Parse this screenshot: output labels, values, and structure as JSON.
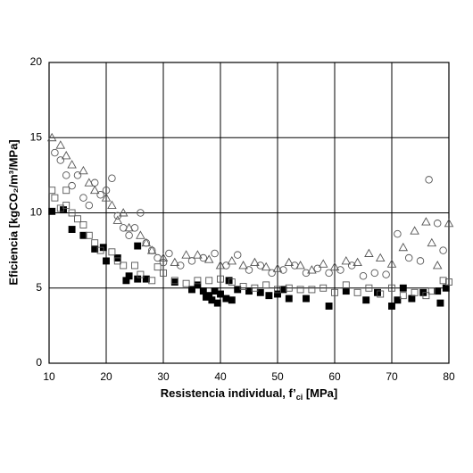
{
  "chart_data": {
    "type": "scatter",
    "xlabel": [
      "Resistencia individual, f’",
      "ci",
      " [MPa]"
    ],
    "ylabel": "Eficiencia [kgCO₂/m³/MPa]",
    "xlim": [
      10,
      80
    ],
    "xticks": [
      10,
      20,
      30,
      40,
      50,
      60,
      70,
      80
    ],
    "ylim": [
      0,
      20
    ],
    "yticks": [
      0,
      5,
      10,
      15,
      20
    ],
    "grid": true,
    "series": [
      {
        "marker": "square",
        "filled": true,
        "color": "#000000",
        "x": [
          10.5,
          12.5,
          14,
          16,
          18,
          19.5,
          20,
          22,
          23.5,
          24,
          25.5,
          25.5,
          27,
          32,
          35,
          36,
          37,
          37.5,
          38,
          38.5,
          39,
          39.5,
          40,
          41,
          41.5,
          42,
          43,
          45,
          47,
          48.5,
          50,
          51,
          52,
          55,
          59,
          62,
          65.5,
          67.5,
          70,
          71,
          72,
          73.5,
          75.5,
          78,
          78.5,
          79.5
        ],
        "values": [
          10.1,
          10.2,
          8.9,
          8.5,
          7.6,
          7.7,
          6.8,
          7.0,
          5.5,
          5.8,
          5.6,
          7.8,
          5.6,
          5.4,
          4.9,
          5.2,
          4.8,
          4.4,
          4.5,
          4.2,
          4.8,
          4.0,
          4.6,
          4.3,
          5.5,
          4.2,
          4.9,
          4.8,
          4.7,
          4.5,
          4.6,
          4.9,
          4.3,
          4.3,
          3.8,
          4.8,
          4.2,
          4.7,
          3.8,
          4.2,
          5.0,
          4.3,
          4.7,
          4.8,
          4.0,
          5.0
        ]
      },
      {
        "marker": "square",
        "filled": false,
        "color": "#555555",
        "x": [
          10.5,
          11,
          12,
          13,
          13,
          14,
          15,
          16,
          17,
          18,
          19,
          21,
          22,
          23,
          25,
          26,
          28,
          29,
          30,
          32,
          34,
          36,
          38,
          40,
          42,
          44,
          46,
          48,
          50,
          52,
          54,
          56,
          58,
          60,
          62,
          64,
          66,
          68,
          70,
          72,
          74,
          76,
          77,
          79,
          80
        ],
        "values": [
          11.5,
          11.0,
          10.3,
          11.5,
          10.5,
          10.0,
          9.6,
          9.2,
          8.5,
          8.0,
          7.5,
          7.4,
          6.8,
          6.5,
          6.5,
          5.9,
          5.5,
          6.4,
          6.0,
          5.5,
          5.3,
          5.5,
          5.5,
          5.6,
          5.4,
          5.1,
          5.0,
          5.2,
          4.9,
          5.0,
          4.9,
          4.9,
          5.0,
          4.7,
          5.2,
          4.7,
          5.0,
          4.6,
          5.0,
          4.5,
          4.7,
          4.5,
          4.8,
          5.5,
          5.4
        ]
      },
      {
        "marker": "circle",
        "filled": false,
        "color": "#555555",
        "x": [
          11,
          12,
          13,
          14,
          15,
          16,
          17,
          18,
          19,
          20,
          21,
          22,
          23,
          24,
          25,
          26,
          27,
          28,
          29,
          30,
          31,
          33,
          35,
          37,
          39,
          41,
          43,
          45,
          47,
          49,
          51,
          53,
          55,
          57,
          59,
          61,
          63,
          65,
          67,
          69,
          71,
          73,
          75,
          76.5,
          78,
          79
        ],
        "values": [
          14.0,
          13.5,
          12.5,
          11.8,
          12.5,
          11.0,
          10.5,
          12.0,
          11.2,
          11.5,
          12.3,
          9.8,
          9.0,
          8.5,
          9.0,
          10.0,
          8.0,
          7.5,
          7.0,
          6.7,
          7.3,
          6.5,
          6.8,
          7.0,
          7.3,
          6.5,
          7.2,
          6.2,
          6.5,
          6.0,
          6.2,
          6.5,
          6.0,
          6.3,
          6.0,
          6.2,
          6.5,
          5.8,
          6.0,
          5.9,
          8.6,
          7.0,
          6.8,
          12.2,
          9.3,
          7.5
        ]
      },
      {
        "marker": "triangle",
        "filled": false,
        "color": "#555555",
        "x": [
          10.5,
          12,
          13,
          14,
          16,
          17,
          18,
          20,
          21,
          22,
          23,
          24,
          26,
          27,
          28,
          30,
          32,
          34,
          36,
          38,
          40,
          42,
          44,
          46,
          48,
          50,
          52,
          54,
          56,
          58,
          60,
          62,
          64,
          66,
          68,
          70,
          72,
          74,
          76,
          77,
          78,
          80
        ],
        "values": [
          15.0,
          14.5,
          13.8,
          13.2,
          12.8,
          12.0,
          11.5,
          11.0,
          10.5,
          9.5,
          10.0,
          9.0,
          8.5,
          8.0,
          7.5,
          7.0,
          6.7,
          7.2,
          7.2,
          6.9,
          6.5,
          6.8,
          6.5,
          6.7,
          6.4,
          6.3,
          6.7,
          6.5,
          6.2,
          6.6,
          6.4,
          6.8,
          6.7,
          7.3,
          7.0,
          6.6,
          7.7,
          8.8,
          9.4,
          8.0,
          6.5,
          9.3
        ]
      }
    ]
  }
}
